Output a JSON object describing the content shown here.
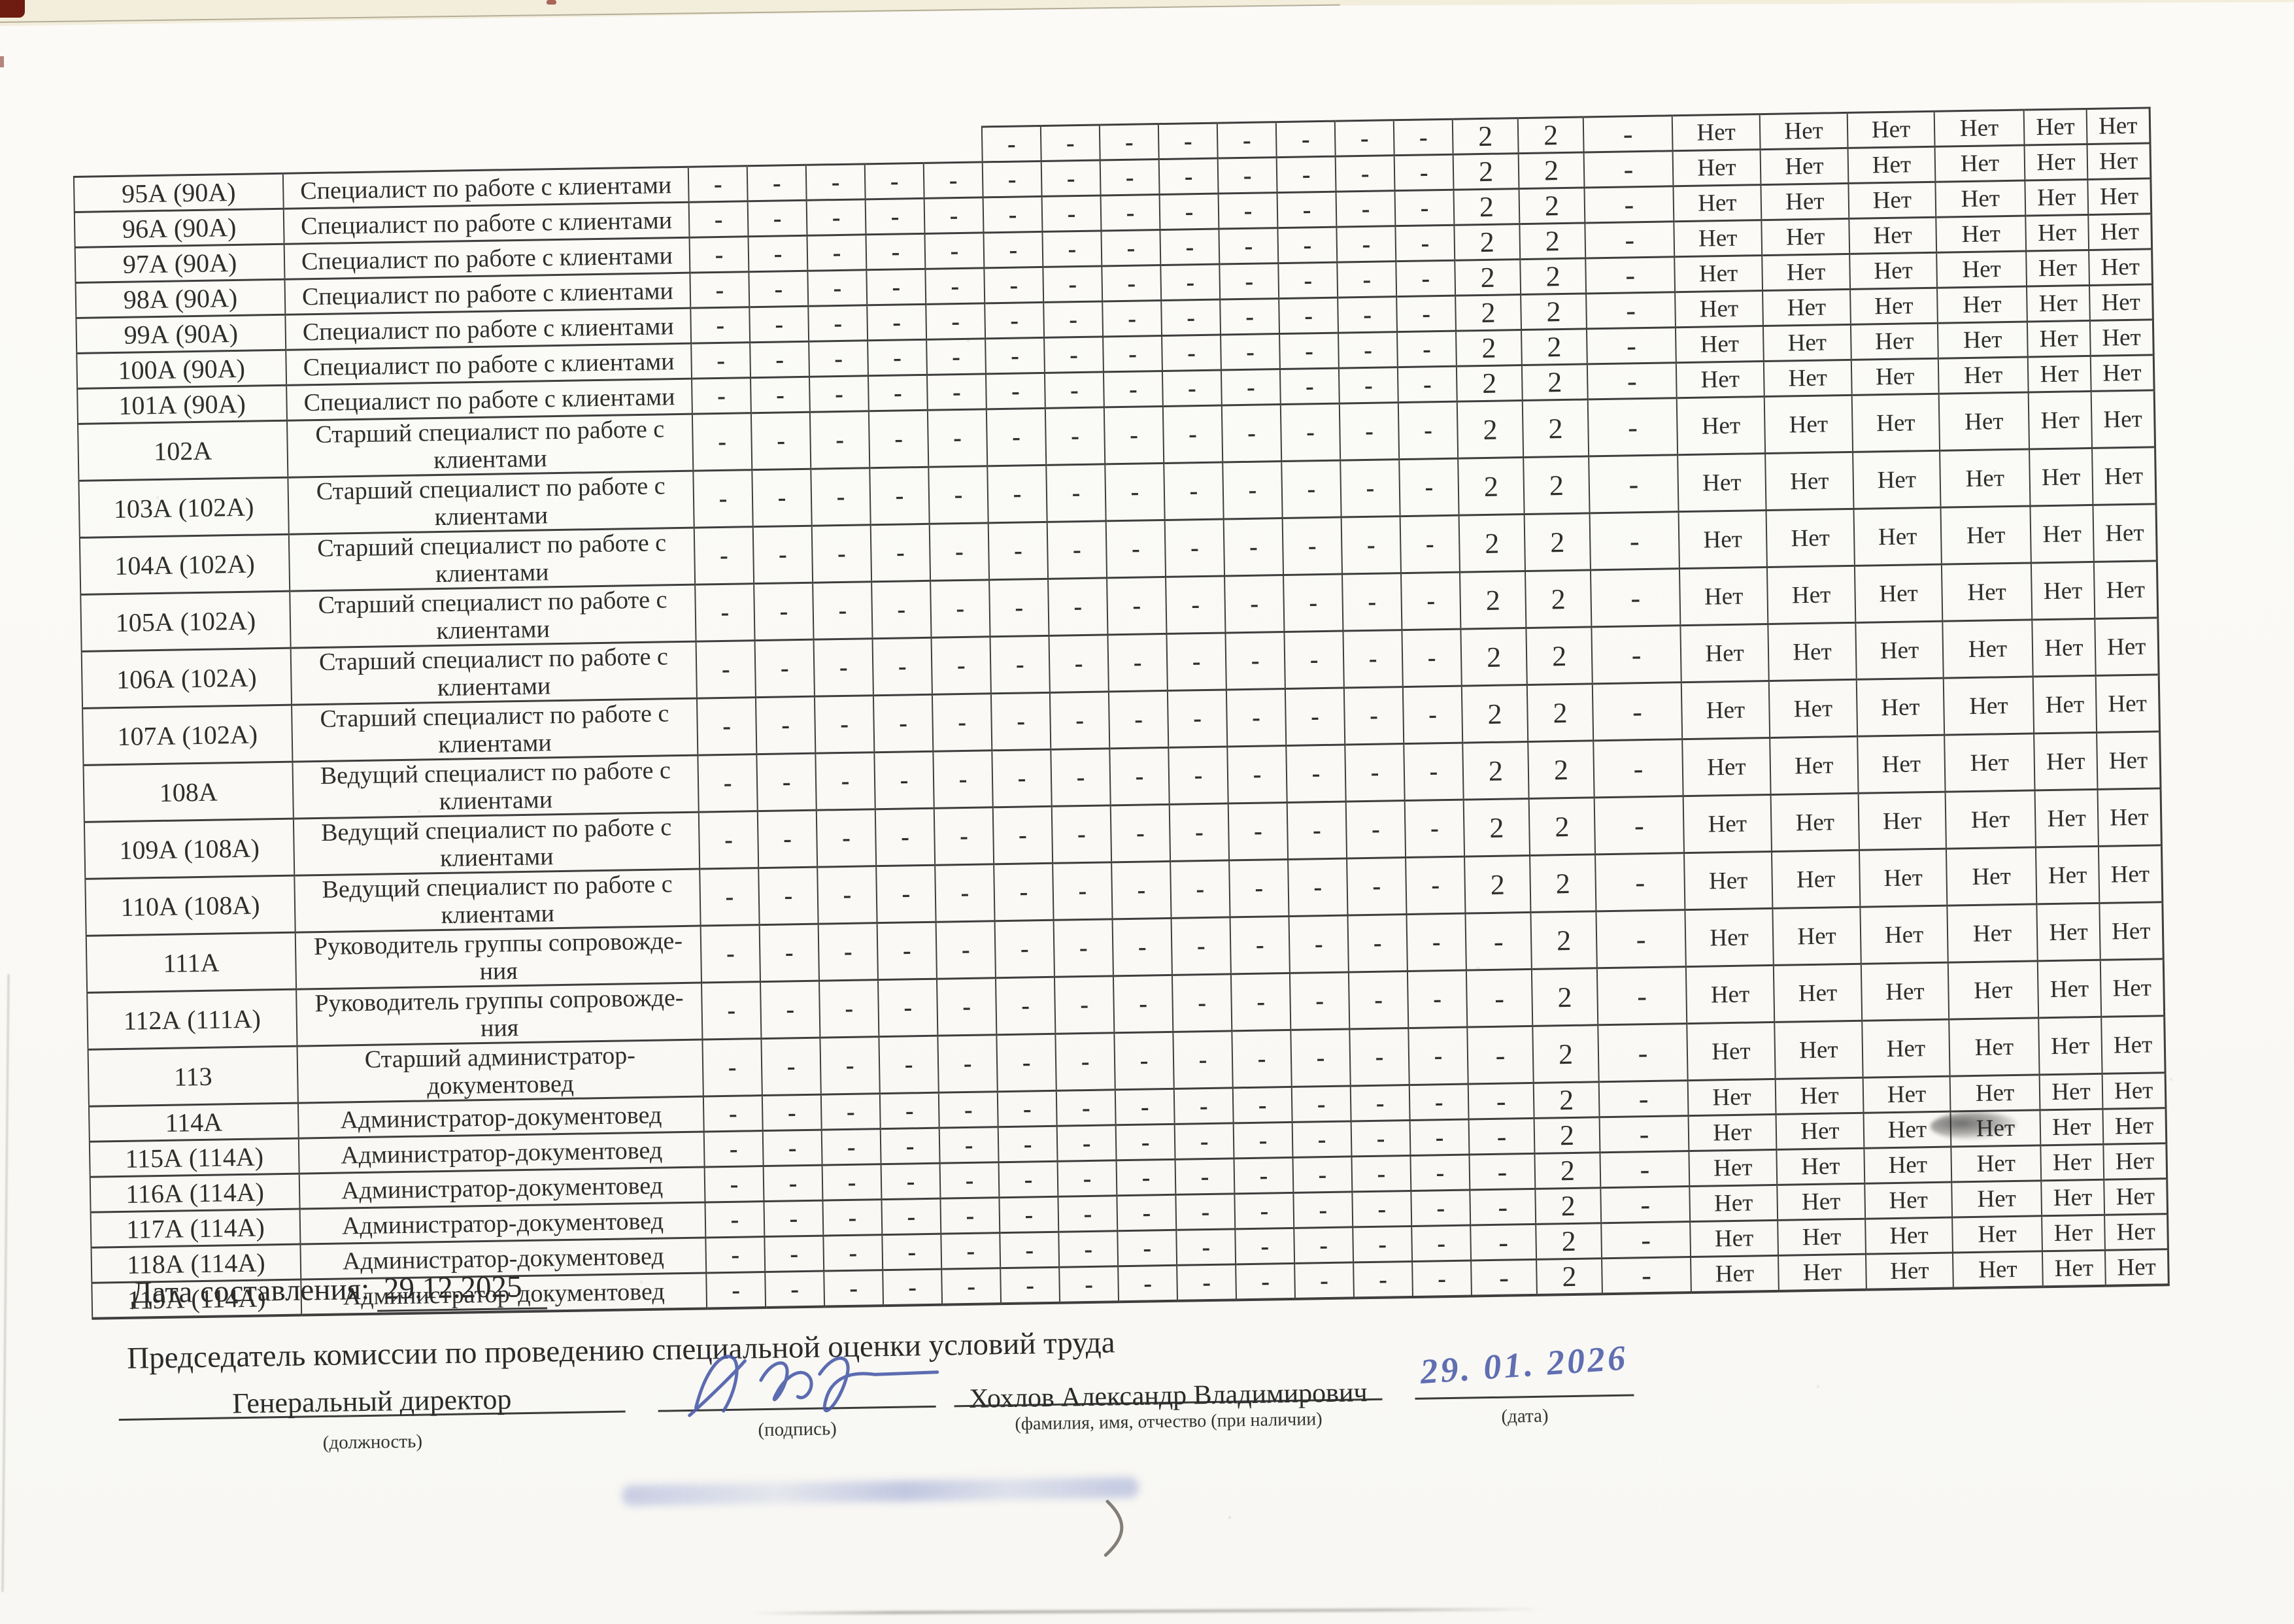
{
  "document": {
    "kind": "Сводная ведомость результатов специальной оценки условий труда (продолжение)",
    "date_label": "Дата составления:",
    "date_value": "29.12.2025",
    "chairman_line": "Председатель комиссии по проведению специальной оценки условий труда",
    "position_value": "Генеральный директор",
    "position_caption": "(должность)",
    "signature_caption": "(подпись)",
    "name_value": "Хохлов Александр Владимирович",
    "name_caption": "(фамилия, имя, отчество (при наличии)",
    "handwritten_date": "29. 01. 2026",
    "date_caption": "(дата)"
  },
  "colors": {
    "ink_blue": "#4b5caa",
    "edge_red": "#6e1b12",
    "top_band_cream": "#f3eedc",
    "table_line": "#3e3e3e",
    "text": "#2e2e2e"
  },
  "table": {
    "patterns": {
      "A": [
        "-",
        "-",
        "-",
        "-",
        "-",
        "-",
        "-",
        "-",
        "-",
        "-",
        "-",
        "-",
        "-",
        "2",
        "2",
        "-",
        "Нет",
        "Нет",
        "Нет",
        "Нет",
        "Нет",
        "Нет"
      ],
      "B": [
        "-",
        "-",
        "-",
        "-",
        "-",
        "-",
        "-",
        "-",
        "-",
        "-",
        "-",
        "-",
        "-",
        "-",
        "2",
        "-",
        "Нет",
        "Нет",
        "Нет",
        "Нет",
        "Нет",
        "Нет"
      ]
    },
    "partial_top_row": {
      "pattern": "A",
      "visible_from": 5
    },
    "rows": [
      {
        "num": "95А (90А)",
        "title": "Специалист по работе с клиентами",
        "two_line": false,
        "pattern": "A"
      },
      {
        "num": "96А (90А)",
        "title": "Специалист по работе с клиентами",
        "two_line": false,
        "pattern": "A"
      },
      {
        "num": "97А (90А)",
        "title": "Специалист по работе с клиентами",
        "two_line": false,
        "pattern": "A"
      },
      {
        "num": "98А (90А)",
        "title": "Специалист по работе с клиентами",
        "two_line": false,
        "pattern": "A"
      },
      {
        "num": "99А (90А)",
        "title": "Специалист по работе с клиентами",
        "two_line": false,
        "pattern": "A"
      },
      {
        "num": "100А (90А)",
        "title": "Специалист по работе с клиентами",
        "two_line": false,
        "pattern": "A"
      },
      {
        "num": "101А (90А)",
        "title": "Специалист по работе с клиентами",
        "two_line": false,
        "pattern": "A"
      },
      {
        "num": "102А",
        "title": "Старший специалист по работе с\nклиентами",
        "two_line": true,
        "pattern": "A"
      },
      {
        "num": "103А (102А)",
        "title": "Старший специалист по работе с\nклиентами",
        "two_line": true,
        "pattern": "A"
      },
      {
        "num": "104А (102А)",
        "title": "Старший специалист по работе с\nклиентами",
        "two_line": true,
        "pattern": "A"
      },
      {
        "num": "105А (102А)",
        "title": "Старший специалист по работе с\nклиентами",
        "two_line": true,
        "pattern": "A"
      },
      {
        "num": "106А (102А)",
        "title": "Старший специалист по работе с\nклиентами",
        "two_line": true,
        "pattern": "A"
      },
      {
        "num": "107А (102А)",
        "title": "Старший специалист по работе с\nклиентами",
        "two_line": true,
        "pattern": "A"
      },
      {
        "num": "108А",
        "title": "Ведущий специалист по работе с\nклиентами",
        "two_line": true,
        "pattern": "A"
      },
      {
        "num": "109А (108А)",
        "title": "Ведущий специалист по работе с\nклиентами",
        "two_line": true,
        "pattern": "A"
      },
      {
        "num": "110А (108А)",
        "title": "Ведущий специалист по работе с\nклиентами",
        "two_line": true,
        "pattern": "A"
      },
      {
        "num": "111А",
        "title": "Руководитель группы сопровожде-\nния",
        "two_line": true,
        "pattern": "B"
      },
      {
        "num": "112А (111А)",
        "title": "Руководитель группы сопровожде-\nния",
        "two_line": true,
        "pattern": "B"
      },
      {
        "num": "113",
        "title": "Старший администратор-\nдокументовед",
        "two_line": true,
        "pattern": "B"
      },
      {
        "num": "114А",
        "title": "Администратор-документовед",
        "two_line": false,
        "pattern": "B"
      },
      {
        "num": "115А (114А)",
        "title": "Администратор-документовед",
        "two_line": false,
        "pattern": "B"
      },
      {
        "num": "116А (114А)",
        "title": "Администратор-документовед",
        "two_line": false,
        "pattern": "B"
      },
      {
        "num": "117А (114А)",
        "title": "Администратор-документовед",
        "two_line": false,
        "pattern": "B"
      },
      {
        "num": "118А (114А)",
        "title": "Администратор-документовед",
        "two_line": false,
        "pattern": "B"
      },
      {
        "num": "119А (114А)",
        "title": "Администратор-документовед",
        "two_line": false,
        "pattern": "B"
      }
    ]
  }
}
